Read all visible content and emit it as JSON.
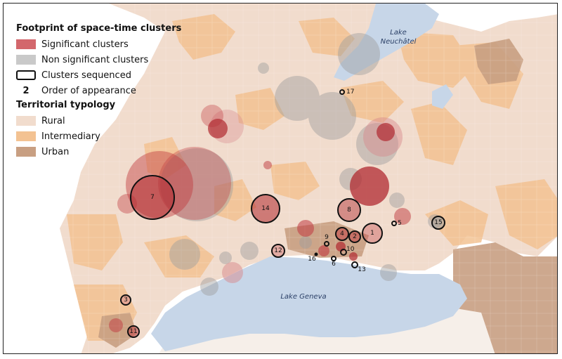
{
  "legend": {
    "clusters_title": "Footprint of space-time clusters",
    "significant_label": "Significant clusters",
    "non_significant_label": "Non significant clusters",
    "sequenced_label": "Clusters sequenced",
    "order_number": "2",
    "order_label": "Order of appearance",
    "typology_title": "Territorial typology",
    "rural_label": "Rural",
    "intermediary_label": "Intermediary",
    "urban_label": "Urban"
  },
  "lakes": {
    "neuchatel_line1": "Lake",
    "neuchatel_line2": "Neuchâtel",
    "geneva": "Lake Geneva"
  },
  "colors": {
    "significant": "#c0393f",
    "non_significant": "#a6a6a6",
    "rural": "#f1dccd",
    "intermediary": "#f3c292",
    "urban": "#c89f82",
    "lake": "#c7d6e8",
    "outside": "#ffffff"
  },
  "sequenced_cluster_labels": [
    "1",
    "2",
    "3",
    "4",
    "5",
    "6",
    "7",
    "8",
    "9",
    "10",
    "11",
    "12",
    "13",
    "14",
    "15",
    "16",
    "17"
  ]
}
